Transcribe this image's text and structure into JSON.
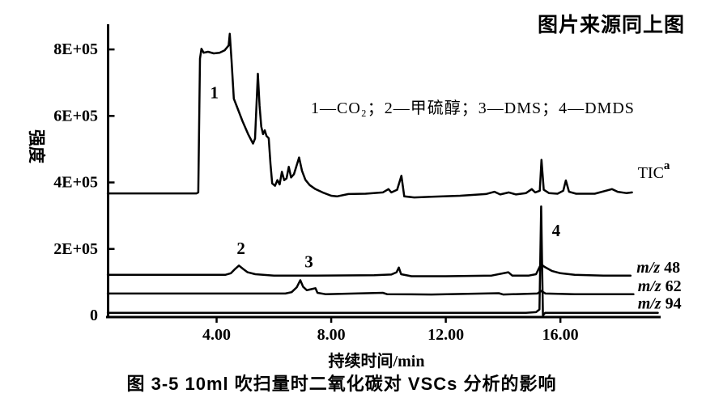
{
  "page": {
    "background": "#ffffff",
    "ink": "#000000"
  },
  "header": {
    "source_note": "图片来源同上图"
  },
  "figure": {
    "caption": "图 3-5  10ml 吹扫量时二氧化碳对 VSCs 分析的影响"
  },
  "chart_data": {
    "type": "line",
    "title": "",
    "xlabel": "持续时间/min",
    "ylabel": "强度",
    "legend_text": "1—CO₂；2—甲硫醇；3—DMS；4—DMDS",
    "intensity_unit": "1E+05",
    "xlim": [
      0,
      19.5
    ],
    "ylim": [
      0,
      9
    ],
    "grid": false,
    "line_color": "#000000",
    "x_ticks": [
      {
        "v": 4,
        "label": "4.00"
      },
      {
        "v": 8,
        "label": "8.00"
      },
      {
        "v": 12,
        "label": "12.00"
      },
      {
        "v": 16,
        "label": "16.00"
      }
    ],
    "y_ticks": [
      {
        "v": 0,
        "label": "0"
      },
      {
        "v": 2,
        "label": "2E+05"
      },
      {
        "v": 4,
        "label": "4E+05"
      },
      {
        "v": 6,
        "label": "6E+05"
      },
      {
        "v": 8,
        "label": "8E+05"
      }
    ],
    "series": [
      {
        "name": "TIC",
        "points": [
          [
            0.2,
            3.67
          ],
          [
            1.5,
            3.67
          ],
          [
            3.3,
            3.67
          ],
          [
            3.36,
            3.7
          ],
          [
            3.42,
            7.72
          ],
          [
            3.47,
            8.02
          ],
          [
            3.55,
            7.9
          ],
          [
            3.7,
            7.93
          ],
          [
            3.9,
            7.88
          ],
          [
            4.1,
            7.9
          ],
          [
            4.28,
            7.97
          ],
          [
            4.42,
            8.12
          ],
          [
            4.46,
            8.47
          ],
          [
            4.52,
            7.7
          ],
          [
            4.6,
            6.52
          ],
          [
            4.7,
            6.3
          ],
          [
            4.9,
            5.85
          ],
          [
            5.1,
            5.45
          ],
          [
            5.27,
            5.17
          ],
          [
            5.34,
            5.32
          ],
          [
            5.44,
            7.27
          ],
          [
            5.5,
            6.3
          ],
          [
            5.56,
            5.68
          ],
          [
            5.62,
            5.45
          ],
          [
            5.68,
            5.57
          ],
          [
            5.74,
            5.4
          ],
          [
            5.82,
            5.33
          ],
          [
            5.88,
            4.55
          ],
          [
            5.94,
            3.97
          ],
          [
            6.04,
            3.9
          ],
          [
            6.12,
            4.07
          ],
          [
            6.2,
            3.94
          ],
          [
            6.28,
            4.32
          ],
          [
            6.36,
            4.07
          ],
          [
            6.44,
            4.12
          ],
          [
            6.52,
            4.47
          ],
          [
            6.6,
            4.15
          ],
          [
            6.7,
            4.25
          ],
          [
            6.88,
            4.75
          ],
          [
            6.98,
            4.35
          ],
          [
            7.1,
            4.08
          ],
          [
            7.25,
            3.92
          ],
          [
            7.45,
            3.8
          ],
          [
            7.7,
            3.7
          ],
          [
            8.0,
            3.6
          ],
          [
            8.2,
            3.58
          ],
          [
            8.6,
            3.65
          ],
          [
            9.2,
            3.66
          ],
          [
            9.8,
            3.7
          ],
          [
            10.0,
            3.8
          ],
          [
            10.1,
            3.7
          ],
          [
            10.3,
            3.78
          ],
          [
            10.45,
            4.2
          ],
          [
            10.55,
            3.58
          ],
          [
            10.9,
            3.55
          ],
          [
            11.5,
            3.57
          ],
          [
            12.5,
            3.6
          ],
          [
            13.4,
            3.65
          ],
          [
            13.7,
            3.72
          ],
          [
            13.9,
            3.64
          ],
          [
            14.2,
            3.7
          ],
          [
            14.45,
            3.64
          ],
          [
            14.8,
            3.68
          ],
          [
            15.0,
            3.8
          ],
          [
            15.12,
            3.7
          ],
          [
            15.28,
            3.75
          ],
          [
            15.34,
            4.68
          ],
          [
            15.42,
            3.78
          ],
          [
            15.6,
            3.68
          ],
          [
            15.9,
            3.66
          ],
          [
            16.1,
            3.75
          ],
          [
            16.19,
            4.06
          ],
          [
            16.3,
            3.72
          ],
          [
            16.55,
            3.66
          ],
          [
            17.2,
            3.66
          ],
          [
            17.8,
            3.8
          ],
          [
            18.0,
            3.72
          ],
          [
            18.3,
            3.68
          ],
          [
            18.5,
            3.7
          ]
        ]
      },
      {
        "name": "m/z 48",
        "points": [
          [
            0.2,
            1.22
          ],
          [
            3.0,
            1.22
          ],
          [
            4.3,
            1.22
          ],
          [
            4.5,
            1.27
          ],
          [
            4.65,
            1.4
          ],
          [
            4.78,
            1.5
          ],
          [
            4.92,
            1.4
          ],
          [
            5.08,
            1.3
          ],
          [
            5.35,
            1.24
          ],
          [
            6.0,
            1.2
          ],
          [
            7.5,
            1.2
          ],
          [
            9.5,
            1.21
          ],
          [
            10.1,
            1.23
          ],
          [
            10.28,
            1.3
          ],
          [
            10.36,
            1.44
          ],
          [
            10.44,
            1.24
          ],
          [
            10.8,
            1.18
          ],
          [
            12.0,
            1.18
          ],
          [
            13.6,
            1.2
          ],
          [
            14.18,
            1.3
          ],
          [
            14.32,
            1.2
          ],
          [
            14.9,
            1.2
          ],
          [
            15.15,
            1.24
          ],
          [
            15.32,
            1.54
          ],
          [
            15.45,
            1.46
          ],
          [
            15.7,
            1.34
          ],
          [
            16.0,
            1.27
          ],
          [
            16.5,
            1.22
          ],
          [
            17.5,
            1.2
          ],
          [
            18.45,
            1.2
          ]
        ]
      },
      {
        "name": "m/z 62",
        "points": [
          [
            0.2,
            0.66
          ],
          [
            3.0,
            0.66
          ],
          [
            6.4,
            0.66
          ],
          [
            6.62,
            0.7
          ],
          [
            6.8,
            0.85
          ],
          [
            6.92,
            1.06
          ],
          [
            7.02,
            0.86
          ],
          [
            7.15,
            0.76
          ],
          [
            7.35,
            0.8
          ],
          [
            7.45,
            0.82
          ],
          [
            7.52,
            0.68
          ],
          [
            7.8,
            0.64
          ],
          [
            9.8,
            0.68
          ],
          [
            9.95,
            0.64
          ],
          [
            11.5,
            0.63
          ],
          [
            13.85,
            0.67
          ],
          [
            14.0,
            0.63
          ],
          [
            15.2,
            0.66
          ],
          [
            15.33,
            0.74
          ],
          [
            15.48,
            0.66
          ],
          [
            16.5,
            0.64
          ],
          [
            18.55,
            0.64
          ]
        ]
      },
      {
        "name": "m/z 94",
        "points": [
          [
            0.2,
            0.08
          ],
          [
            5.0,
            0.08
          ],
          [
            10.0,
            0.08
          ],
          [
            14.8,
            0.08
          ],
          [
            15.15,
            0.1
          ],
          [
            15.27,
            0.18
          ],
          [
            15.33,
            3.28
          ],
          [
            15.39,
            0.0
          ],
          [
            15.47,
            0.08
          ],
          [
            16.3,
            0.08
          ],
          [
            19.4,
            0.08
          ]
        ]
      }
    ],
    "peak_labels": [
      {
        "text": "1",
        "t": 3.92,
        "i": 6.7
      },
      {
        "text": "2",
        "t": 4.85,
        "i": 2.02
      },
      {
        "text": "3",
        "t": 7.22,
        "i": 1.62
      },
      {
        "text": "4",
        "t": 15.85,
        "i": 2.55
      }
    ],
    "trace_labels": [
      {
        "name": "TIC",
        "t": 18.7,
        "i": 4.28,
        "parts": [
          {
            "text": "TIC"
          },
          {
            "text": "a",
            "sup": true
          }
        ]
      },
      {
        "name": "m/z 48",
        "t": 18.66,
        "i": 1.43,
        "parts": [
          {
            "text": "m/z",
            "italic": true,
            "bold": true
          },
          {
            "text": " 48",
            "bold": true
          }
        ]
      },
      {
        "name": "m/z 62",
        "t": 18.7,
        "i": 0.88,
        "parts": [
          {
            "text": "m/z",
            "italic": true,
            "bold": true
          },
          {
            "text": " 62",
            "bold": true
          }
        ]
      },
      {
        "name": "m/z 94",
        "t": 18.7,
        "i": 0.35,
        "parts": [
          {
            "text": "m/z",
            "italic": true,
            "bold": true
          },
          {
            "text": " 94",
            "bold": true
          }
        ]
      }
    ]
  }
}
